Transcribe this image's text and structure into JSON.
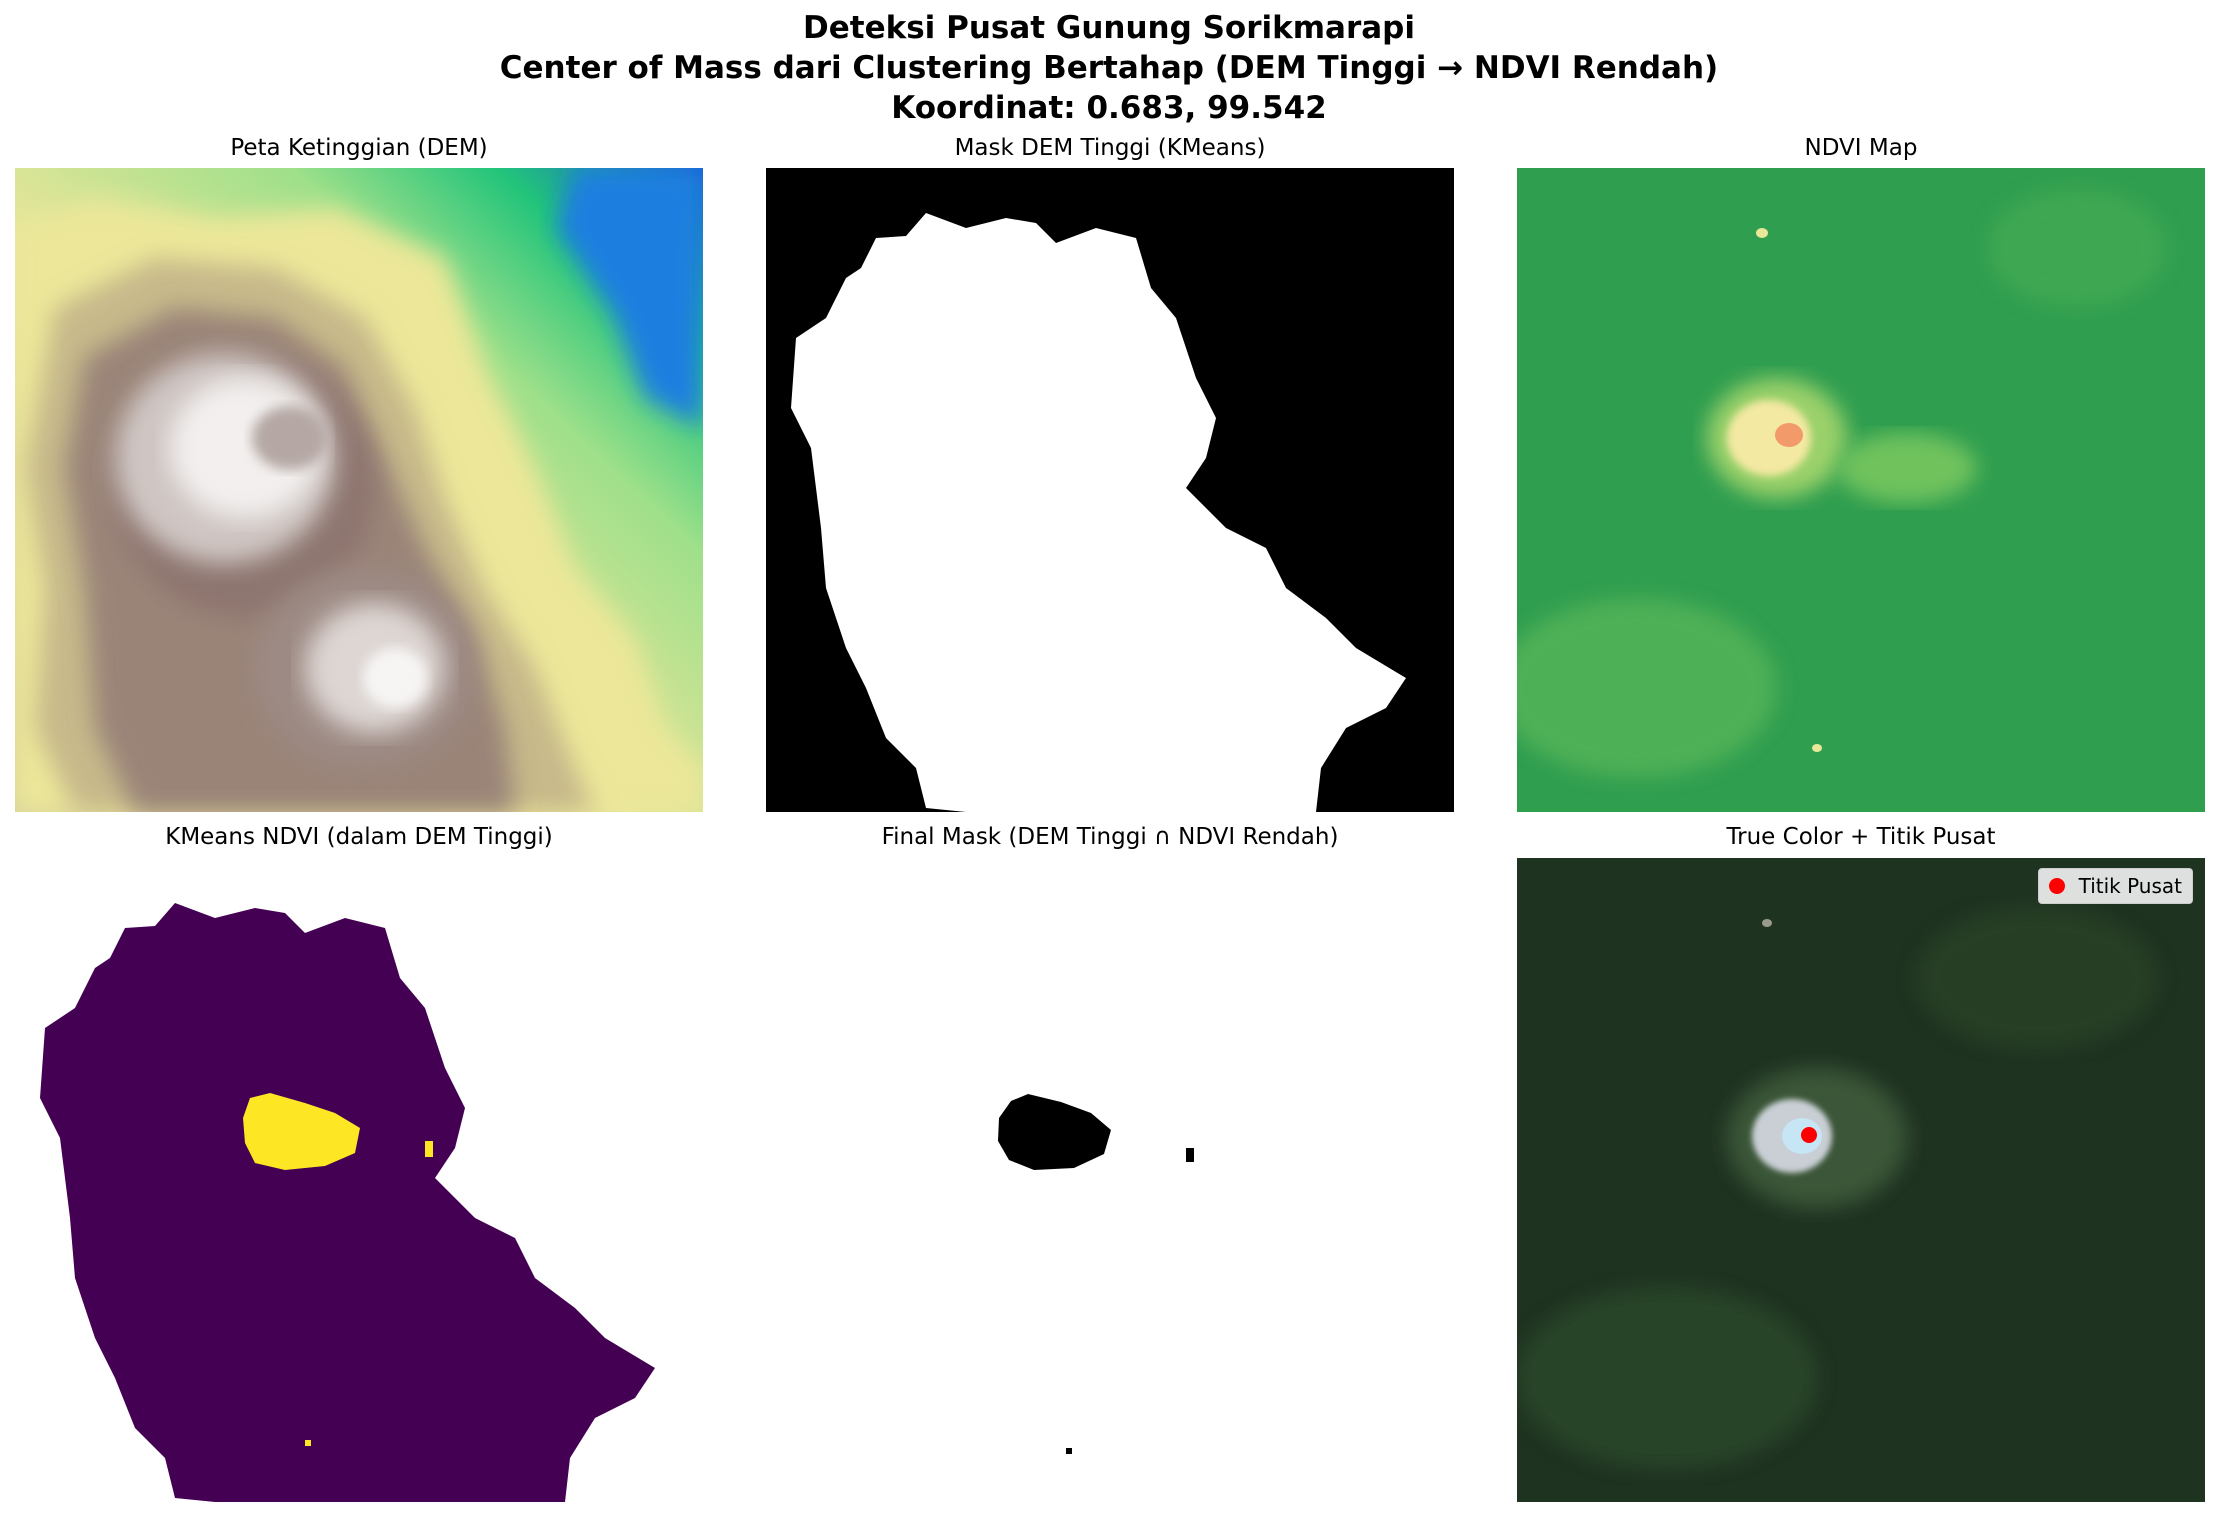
{
  "figure": {
    "title_line1": "Deteksi Pusat Gunung Sorikmarapi",
    "title_line2": "Center of Mass dari Clustering Bertahap (DEM Tinggi → NDVI Rendah)",
    "title_line3": "Koordinat: 0.683, 99.542"
  },
  "panels": [
    {
      "title": "Peta Ketinggian (DEM)",
      "colormap": "terrain"
    },
    {
      "title": "Mask DEM Tinggi (KMeans)",
      "colormap": "gray"
    },
    {
      "title": "NDVI Map",
      "colormap": "RdYlGn"
    },
    {
      "title": "KMeans NDVI (dalam DEM Tinggi)",
      "colormap": "viridis"
    },
    {
      "title": "Final Mask (DEM Tinggi ∩ NDVI Rendah)",
      "colormap": "gray"
    },
    {
      "title": "True Color + Titik Pusat",
      "colormap": "rgb"
    }
  ],
  "legend": {
    "label": "Titik Pusat",
    "marker_color": "#ff0000"
  },
  "center_point": {
    "lat": 0.683,
    "lon": 99.542
  },
  "colors": {
    "viridis_low": "#440154",
    "viridis_high": "#fde725",
    "ndvi_green": "#2f9e4f",
    "truecolor_forest": "#1f3321"
  }
}
